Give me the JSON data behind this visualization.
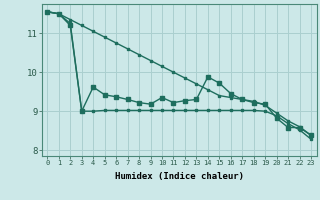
{
  "background_color": "#cce8e8",
  "grid_color": "#aacfcf",
  "line_color": "#1e6e5e",
  "x_label": "Humidex (Indice chaleur)",
  "xlim": [
    -0.5,
    23.5
  ],
  "ylim": [
    7.85,
    11.75
  ],
  "yticks": [
    8,
    9,
    10,
    11
  ],
  "xticks": [
    0,
    1,
    2,
    3,
    4,
    5,
    6,
    7,
    8,
    9,
    10,
    11,
    12,
    13,
    14,
    15,
    16,
    17,
    18,
    19,
    20,
    21,
    22,
    23
  ],
  "line1_x": [
    0,
    1,
    2,
    3,
    4,
    5,
    6,
    7,
    8,
    9,
    10,
    11,
    12,
    13,
    14,
    15,
    16,
    17,
    18,
    19,
    20,
    21,
    22,
    23
  ],
  "line1_y": [
    11.55,
    11.5,
    11.35,
    11.2,
    11.05,
    10.9,
    10.75,
    10.6,
    10.45,
    10.3,
    10.15,
    10.0,
    9.85,
    9.7,
    9.55,
    9.4,
    9.35,
    9.3,
    9.25,
    9.15,
    8.95,
    8.75,
    8.6,
    8.38
  ],
  "line2_x": [
    0,
    1,
    2,
    3,
    4,
    5,
    6,
    7,
    8,
    9,
    10,
    11,
    12,
    13,
    14,
    15,
    16,
    17,
    18,
    19,
    20,
    21,
    22,
    23
  ],
  "line2_y": [
    11.55,
    11.5,
    11.2,
    9.0,
    9.62,
    9.42,
    9.37,
    9.3,
    9.22,
    9.18,
    9.35,
    9.22,
    9.27,
    9.3,
    9.88,
    9.72,
    9.45,
    9.3,
    9.22,
    9.18,
    8.82,
    8.58,
    8.58,
    8.38
  ],
  "line3_x": [
    0,
    1,
    2,
    3,
    4,
    5,
    6,
    7,
    8,
    9,
    10,
    11,
    12,
    13,
    14,
    15,
    16,
    17,
    18,
    19,
    20,
    21,
    22,
    23
  ],
  "line3_y": [
    11.55,
    11.5,
    11.25,
    9.0,
    9.0,
    9.02,
    9.02,
    9.02,
    9.02,
    9.02,
    9.02,
    9.02,
    9.02,
    9.02,
    9.02,
    9.02,
    9.02,
    9.02,
    9.02,
    9.0,
    8.88,
    8.68,
    8.52,
    8.28
  ]
}
